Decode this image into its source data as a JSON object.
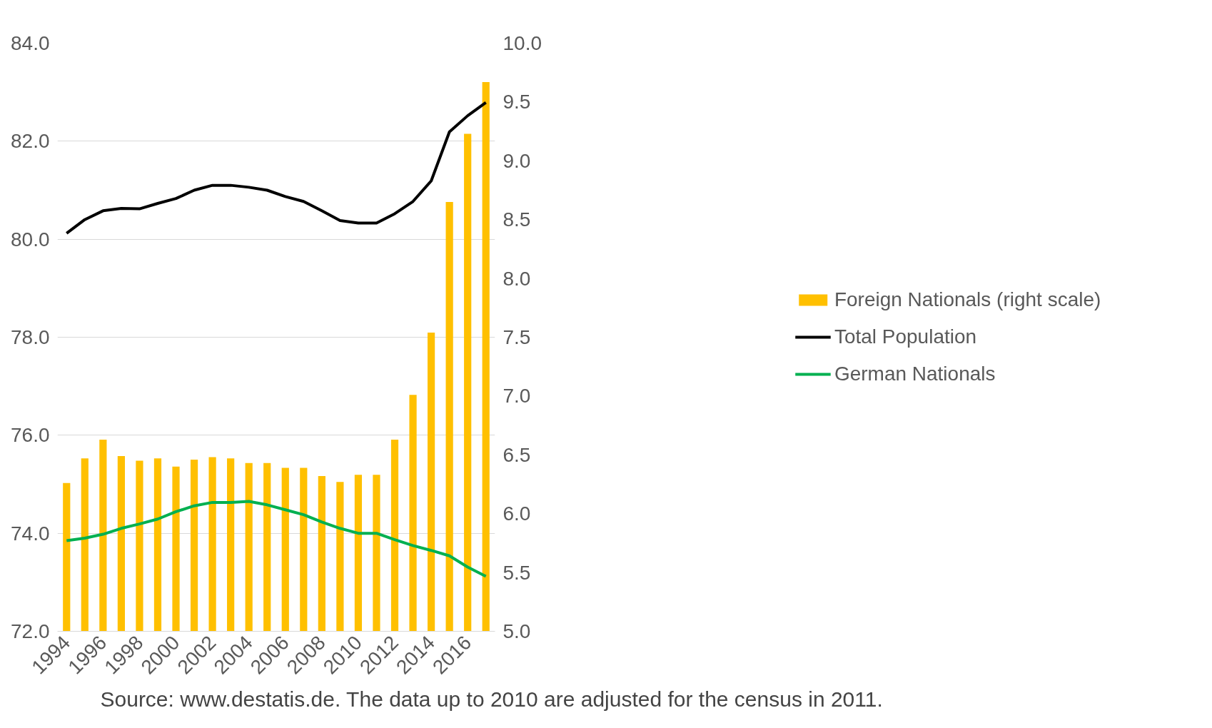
{
  "chart_data": {
    "type": "bar",
    "categories": [
      "1994",
      null,
      "1996",
      null,
      "1998",
      null,
      "2000",
      null,
      "2002",
      null,
      "2004",
      null,
      "2006",
      null,
      "2008",
      null,
      "2010",
      null,
      "2012",
      null,
      "2014",
      null,
      "2016",
      null
    ],
    "series": [
      {
        "name": "Foreign Nationals (right scale)",
        "axis": "y2",
        "color": "#ffc000",
        "values": [
          6.26,
          6.47,
          6.63,
          6.49,
          6.45,
          6.47,
          6.4,
          6.46,
          6.48,
          6.47,
          6.43,
          6.43,
          6.39,
          6.39,
          6.32,
          6.27,
          6.33,
          6.33,
          6.63,
          7.01,
          7.54,
          8.65,
          9.23,
          9.67
        ]
      },
      {
        "name": "Total Population",
        "type": "line",
        "color": "#000000",
        "values": [
          80.12,
          80.4,
          80.58,
          80.63,
          80.62,
          80.73,
          80.83,
          81.0,
          81.1,
          81.1,
          81.06,
          81.0,
          80.87,
          80.77,
          80.58,
          80.38,
          80.33,
          80.33,
          80.52,
          80.77,
          81.19,
          82.19,
          82.52,
          82.79
        ]
      },
      {
        "name": "German Nationals",
        "type": "line",
        "color": "#00b050",
        "values": [
          73.85,
          73.9,
          73.98,
          74.1,
          74.19,
          74.29,
          74.44,
          74.56,
          74.63,
          74.63,
          74.65,
          74.58,
          74.48,
          74.38,
          74.23,
          74.1,
          74.0,
          74.0,
          73.87,
          73.75,
          73.65,
          73.54,
          73.31,
          73.12
        ]
      }
    ],
    "ylim": [
      72,
      84
    ],
    "yticks": [
      {
        "value": 72,
        "label": "72.0"
      },
      {
        "value": 74,
        "label": "74.0"
      },
      {
        "value": 76,
        "label": "76.0"
      },
      {
        "value": 78,
        "label": "78.0"
      },
      {
        "value": 80,
        "label": "80.0"
      },
      {
        "value": 82,
        "label": "82.0"
      },
      {
        "value": 84,
        "label": "84.0"
      }
    ],
    "y2lim": [
      5,
      10
    ],
    "y2ticks": [
      {
        "value": 5,
        "label": "5.0"
      },
      {
        "value": 5.5,
        "label": "5.5"
      },
      {
        "value": 6,
        "label": "6.0"
      },
      {
        "value": 6.5,
        "label": "6.5"
      },
      {
        "value": 7,
        "label": "7.0"
      },
      {
        "value": 7.5,
        "label": "7.5"
      },
      {
        "value": 8,
        "label": "8.0"
      },
      {
        "value": 8.5,
        "label": "8.5"
      },
      {
        "value": 9,
        "label": "9.0"
      },
      {
        "value": 9.5,
        "label": "9.5"
      },
      {
        "value": 10,
        "label": "10.0"
      }
    ],
    "grid": "y",
    "legend": "right",
    "line_style": "solid",
    "marker": "none",
    "annotations": [
      "Source: www.destatis.de. The data up to 2010 are adjusted for the census in 2011."
    ]
  }
}
